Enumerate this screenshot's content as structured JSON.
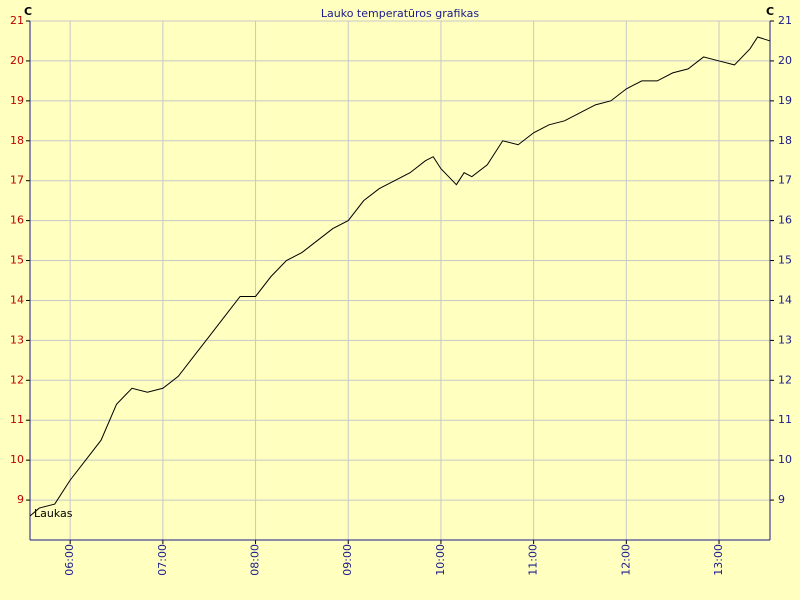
{
  "chart_data": {
    "type": "line",
    "title": "Lauko temperatūros grafikas",
    "y_label": "C",
    "x": [
      334,
      340,
      350,
      360,
      370,
      380,
      390,
      400,
      410,
      420,
      430,
      440,
      450,
      460,
      470,
      480,
      490,
      500,
      510,
      520,
      530,
      540,
      550,
      560,
      570,
      580,
      590,
      595,
      600,
      605,
      610,
      615,
      620,
      630,
      640,
      650,
      660,
      670,
      680,
      690,
      700,
      710,
      720,
      730,
      740,
      750,
      760,
      770,
      780,
      790,
      800,
      805,
      813
    ],
    "series": [
      {
        "name": "Laukas",
        "color": "#000000",
        "values": [
          8.6,
          8.8,
          8.9,
          9.5,
          10.0,
          10.5,
          11.4,
          11.8,
          11.7,
          11.8,
          12.1,
          12.6,
          13.1,
          13.6,
          14.1,
          14.1,
          14.6,
          15.0,
          15.2,
          15.5,
          15.8,
          16.0,
          16.5,
          16.8,
          17.0,
          17.2,
          17.5,
          17.6,
          17.3,
          17.1,
          16.9,
          17.2,
          17.1,
          17.4,
          18.0,
          17.9,
          18.2,
          18.4,
          18.5,
          18.7,
          18.9,
          19.0,
          19.3,
          19.5,
          19.5,
          19.7,
          19.8,
          20.1,
          20.0,
          19.9,
          20.3,
          20.6,
          20.5
        ]
      }
    ],
    "xlim": [
      334,
      813
    ],
    "xticks": [
      {
        "value": 360,
        "label": "06:00"
      },
      {
        "value": 420,
        "label": "07:00"
      },
      {
        "value": 480,
        "label": "08:00"
      },
      {
        "value": 540,
        "label": "09:00"
      },
      {
        "value": 600,
        "label": "10:00"
      },
      {
        "value": 660,
        "label": "11:00"
      },
      {
        "value": 720,
        "label": "12:00"
      },
      {
        "value": 780,
        "label": "13:00"
      }
    ],
    "ylim": [
      8,
      21
    ],
    "yticks": [
      9,
      10,
      11,
      12,
      13,
      14,
      15,
      16,
      17,
      18,
      19,
      20,
      21
    ],
    "grid": true
  }
}
